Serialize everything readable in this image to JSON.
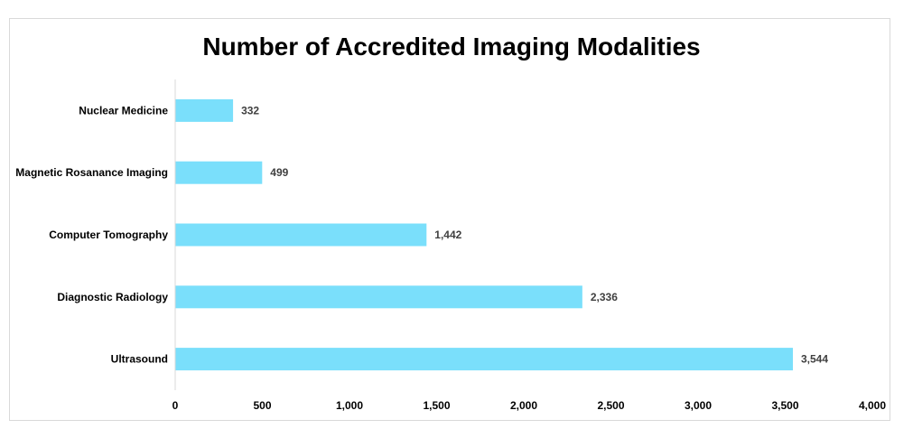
{
  "chart_data": {
    "type": "bar",
    "orientation": "horizontal",
    "title": "Number of Accredited Imaging Modalities",
    "categories": [
      "Nuclear Medicine",
      "Magnetic Rosanance Imaging",
      "Computer Tomography",
      "Diagnostic Radiology",
      "Ultrasound"
    ],
    "values": [
      332,
      499,
      1442,
      2336,
      3544
    ],
    "data_labels": [
      "332",
      "499",
      "1,442",
      "2,336",
      "3,544"
    ],
    "xlim": [
      0,
      4000
    ],
    "x_ticks": [
      0,
      500,
      1000,
      1500,
      2000,
      2500,
      3000,
      3500,
      4000
    ],
    "x_tick_labels": [
      "0",
      "500",
      "1,000",
      "1,500",
      "2,000",
      "2,500",
      "3,000",
      "3,500",
      "4,000"
    ],
    "xlabel": "",
    "ylabel": "",
    "grid": false,
    "legend": "none",
    "bar_color": "#7ADFFB",
    "axis_color": "#d9d9d9"
  }
}
